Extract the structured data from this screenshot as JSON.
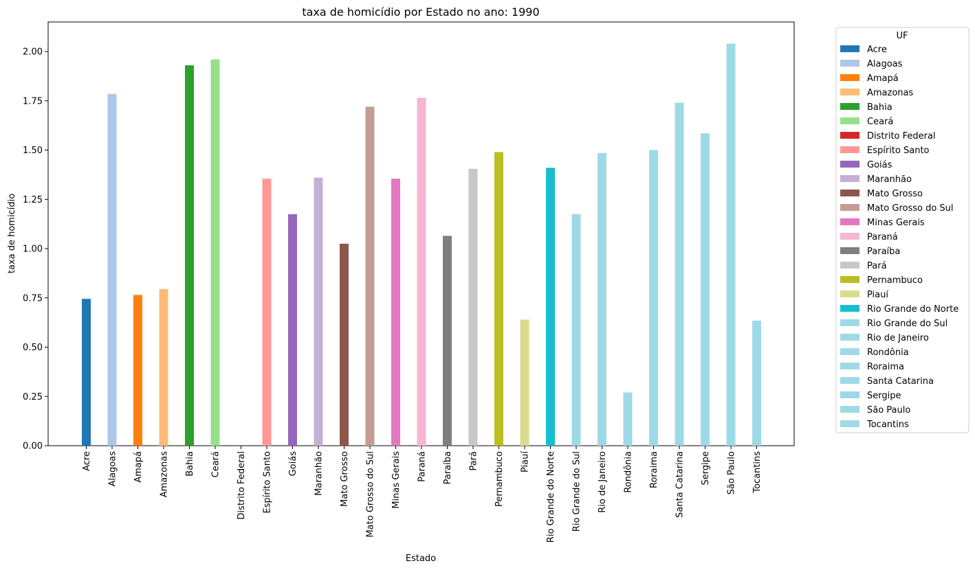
{
  "chart_data": {
    "type": "bar",
    "title": "taxa de homicídio por Estado no ano: 1990",
    "xlabel": "Estado",
    "ylabel": "taxa de homicídio",
    "ylim": [
      0,
      2.15
    ],
    "yticks": [
      "0.00",
      "0.25",
      "0.50",
      "0.75",
      "1.00",
      "1.25",
      "1.50",
      "1.75",
      "2.00"
    ],
    "grid": false,
    "legend": {
      "title": "UF",
      "placement": "outside-right"
    },
    "categories": [
      "Acre",
      "Alagoas",
      "Amapá",
      "Amazonas",
      "Bahia",
      "Ceará",
      "Distrito Federal",
      "Espírito Santo",
      "Goiás",
      "Maranhão",
      "Mato Grosso",
      "Mato Grosso do Sul",
      "Minas Gerais",
      "Paraná",
      "Paraíba",
      "Pará",
      "Pernambuco",
      "Piauí",
      "Rio Grande do Norte",
      "Rio Grande do Sul",
      "Rio de Janeiro",
      "Rondônia",
      "Roraima",
      "Santa Catarina",
      "Sergipe",
      "São Paulo",
      "Tocantins"
    ],
    "values": [
      0.745,
      1.785,
      0.765,
      0.795,
      1.93,
      1.96,
      0.0,
      1.355,
      1.175,
      1.36,
      1.025,
      1.72,
      1.355,
      1.765,
      1.065,
      1.405,
      1.49,
      0.64,
      1.41,
      1.175,
      1.485,
      0.27,
      1.5,
      1.74,
      1.585,
      2.04,
      0.635
    ],
    "colors": [
      "#1f77b4",
      "#aec7e8",
      "#ff7f0e",
      "#ffbb78",
      "#2ca02c",
      "#98df8a",
      "#d62728",
      "#ff9896",
      "#9467bd",
      "#c5b0d5",
      "#8c564b",
      "#c49c94",
      "#e377c2",
      "#f7b6d2",
      "#7f7f7f",
      "#c7c7c7",
      "#bcbd22",
      "#dbdb8d",
      "#17becf",
      "#9edae5",
      "#9edae5",
      "#9edae5",
      "#9edae5",
      "#9edae5",
      "#9edae5",
      "#9edae5",
      "#9edae5"
    ]
  }
}
